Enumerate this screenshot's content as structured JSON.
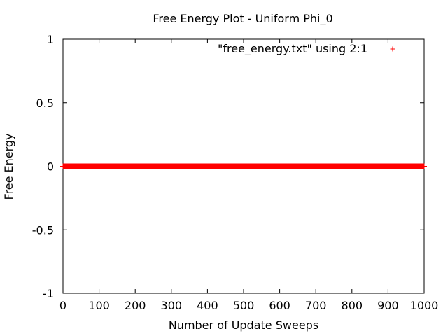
{
  "chart_data": {
    "type": "scatter",
    "title": "Free Energy Plot - Uniform Phi_0",
    "xlabel": "Number of Update Sweeps",
    "ylabel": "Free Energy",
    "xlim": [
      0,
      1000
    ],
    "ylim": [
      -1,
      1
    ],
    "xticks": [
      "0",
      "100",
      "200",
      "300",
      "400",
      "500",
      "600",
      "700",
      "800",
      "900",
      "1000"
    ],
    "yticks": [
      "1",
      "0.5",
      "0",
      "-0.5",
      "-1"
    ],
    "grid": false,
    "legend_position": "top-right",
    "series": [
      {
        "name": "\"free_energy.txt\" using 2:1",
        "color": "#ff0000",
        "marker": "plus",
        "x_range": [
          0,
          1000
        ],
        "x_step": 1,
        "y_constant": 0
      }
    ]
  }
}
